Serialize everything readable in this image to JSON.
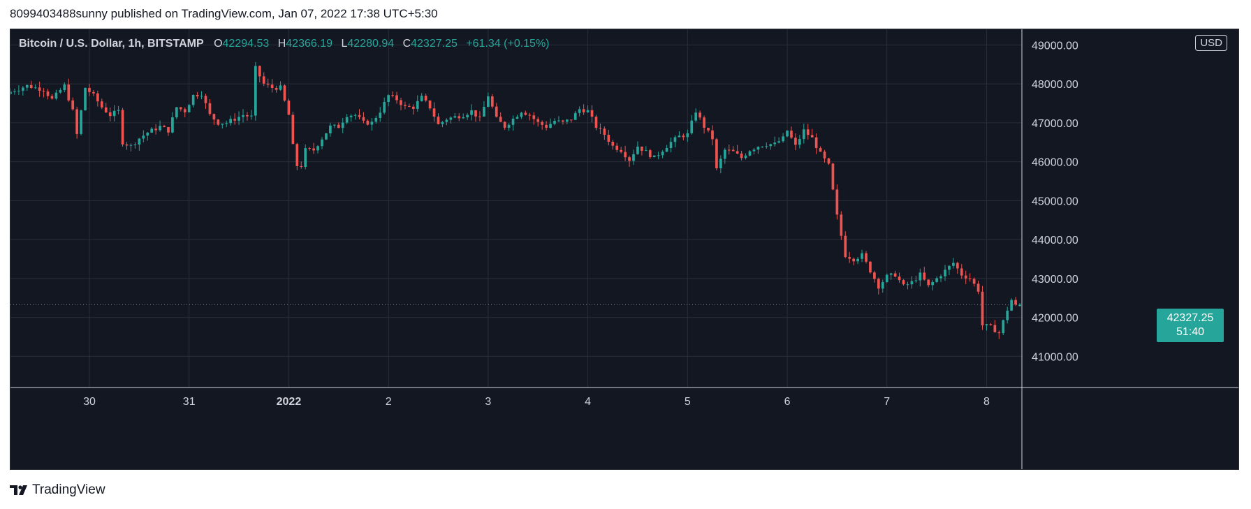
{
  "header": {
    "publish_text": "8099403488sunny published on TradingView.com, Jan 07, 2022 17:38 UTC+5:30"
  },
  "legend": {
    "symbol": "Bitcoin / U.S. Dollar, 1h, BITSTAMP",
    "open_label": "O",
    "open": "42294.53",
    "high_label": "H",
    "high": "42366.19",
    "low_label": "L",
    "low": "42280.94",
    "close_label": "C",
    "close": "42327.25",
    "change": "+61.34 (+0.15%)"
  },
  "currency_badge": "USD",
  "last_price": {
    "price": "42327.25",
    "countdown": "51:40"
  },
  "footer": {
    "brand": "TradingView"
  },
  "colors": {
    "background": "#131722",
    "grid": "#2a2e39",
    "up": "#26a69a",
    "down": "#ef5350",
    "text": "#d1d4dc"
  },
  "chart_data": {
    "type": "candlestick",
    "title": "Bitcoin / U.S. Dollar, 1h, BITSTAMP",
    "currency": "USD",
    "ylim": [
      40200,
      49400
    ],
    "y_ticks": [
      "41000.00",
      "42000.00",
      "43000.00",
      "44000.00",
      "45000.00",
      "46000.00",
      "47000.00",
      "48000.00",
      "49000.00"
    ],
    "x_ticks": [
      {
        "label": "30",
        "hour": 31
      },
      {
        "label": "31",
        "hour": 55
      },
      {
        "label": "2022",
        "hour": 79
      },
      {
        "label": "2",
        "hour": 103
      },
      {
        "label": "3",
        "hour": 127
      },
      {
        "label": "4",
        "hour": 151
      },
      {
        "label": "5",
        "hour": 175
      },
      {
        "label": "6",
        "hour": 199
      },
      {
        "label": "7",
        "hour": 223
      },
      {
        "label": "8",
        "hour": 247
      }
    ],
    "x_range_hours": [
      12,
      255.5
    ],
    "close_path": [
      [
        12,
        47800
      ],
      [
        16,
        47950
      ],
      [
        20,
        47850
      ],
      [
        22,
        47600
      ],
      [
        25,
        47950
      ],
      [
        27,
        47300
      ],
      [
        28,
        46700
      ],
      [
        30,
        47900
      ],
      [
        32,
        47700
      ],
      [
        34,
        47400
      ],
      [
        36,
        47200
      ],
      [
        38,
        47300
      ],
      [
        39,
        46500
      ],
      [
        41,
        46400
      ],
      [
        43,
        46600
      ],
      [
        45,
        46750
      ],
      [
        48,
        46900
      ],
      [
        50,
        46800
      ],
      [
        52,
        47400
      ],
      [
        54,
        47300
      ],
      [
        56,
        47700
      ],
      [
        58,
        47750
      ],
      [
        60,
        47200
      ],
      [
        62,
        47000
      ],
      [
        64,
        47000
      ],
      [
        66,
        47100
      ],
      [
        68,
        47200
      ],
      [
        70,
        47150
      ],
      [
        71,
        48400
      ],
      [
        73,
        48000
      ],
      [
        75,
        47900
      ],
      [
        77,
        47900
      ],
      [
        79,
        47200
      ],
      [
        80,
        46400
      ],
      [
        81,
        45900
      ],
      [
        82,
        45900
      ],
      [
        83,
        46300
      ],
      [
        85,
        46300
      ],
      [
        87,
        46600
      ],
      [
        89,
        46900
      ],
      [
        91,
        46900
      ],
      [
        93,
        47200
      ],
      [
        95,
        47200
      ],
      [
        97,
        47000
      ],
      [
        99,
        47000
      ],
      [
        101,
        47300
      ],
      [
        103,
        47700
      ],
      [
        105,
        47600
      ],
      [
        107,
        47400
      ],
      [
        109,
        47400
      ],
      [
        111,
        47650
      ],
      [
        113,
        47400
      ],
      [
        115,
        46950
      ],
      [
        117,
        47100
      ],
      [
        119,
        47150
      ],
      [
        121,
        47200
      ],
      [
        123,
        47300
      ],
      [
        125,
        47100
      ],
      [
        127,
        47700
      ],
      [
        129,
        47100
      ],
      [
        131,
        46900
      ],
      [
        133,
        47100
      ],
      [
        135,
        47300
      ],
      [
        137,
        47200
      ],
      [
        139,
        47000
      ],
      [
        141,
        46900
      ],
      [
        143,
        47050
      ],
      [
        145,
        47000
      ],
      [
        147,
        47100
      ],
      [
        149,
        47350
      ],
      [
        151,
        47300
      ],
      [
        153,
        46900
      ],
      [
        155,
        46700
      ],
      [
        157,
        46400
      ],
      [
        159,
        46300
      ],
      [
        161,
        46050
      ],
      [
        163,
        46400
      ],
      [
        165,
        46250
      ],
      [
        167,
        46100
      ],
      [
        169,
        46300
      ],
      [
        171,
        46500
      ],
      [
        173,
        46650
      ],
      [
        175,
        46700
      ],
      [
        177,
        47300
      ],
      [
        179,
        46900
      ],
      [
        181,
        46600
      ],
      [
        182,
        45800
      ],
      [
        184,
        46300
      ],
      [
        186,
        46250
      ],
      [
        188,
        46100
      ],
      [
        190,
        46300
      ],
      [
        192,
        46400
      ],
      [
        194,
        46450
      ],
      [
        196,
        46450
      ],
      [
        198,
        46600
      ],
      [
        199,
        46800
      ],
      [
        201,
        46400
      ],
      [
        203,
        46800
      ],
      [
        205,
        46600
      ],
      [
        207,
        46200
      ],
      [
        209,
        45900
      ],
      [
        211,
        44600
      ],
      [
        213,
        43600
      ],
      [
        215,
        43500
      ],
      [
        217,
        43600
      ],
      [
        219,
        43200
      ],
      [
        221,
        42800
      ],
      [
        223,
        43050
      ],
      [
        225,
        43100
      ],
      [
        227,
        42800
      ],
      [
        229,
        42900
      ],
      [
        231,
        43100
      ],
      [
        233,
        42800
      ],
      [
        235,
        43000
      ],
      [
        237,
        43200
      ],
      [
        239,
        43400
      ],
      [
        241,
        43100
      ],
      [
        243,
        43000
      ],
      [
        245,
        42700
      ],
      [
        246,
        41800
      ],
      [
        248,
        41750
      ],
      [
        250,
        41600
      ],
      [
        252,
        42200
      ],
      [
        253,
        42450
      ],
      [
        254,
        42300
      ],
      [
        255,
        42330
      ]
    ],
    "last": {
      "open": 42294.53,
      "high": 42366.19,
      "low": 42280.94,
      "close": 42327.25
    }
  }
}
